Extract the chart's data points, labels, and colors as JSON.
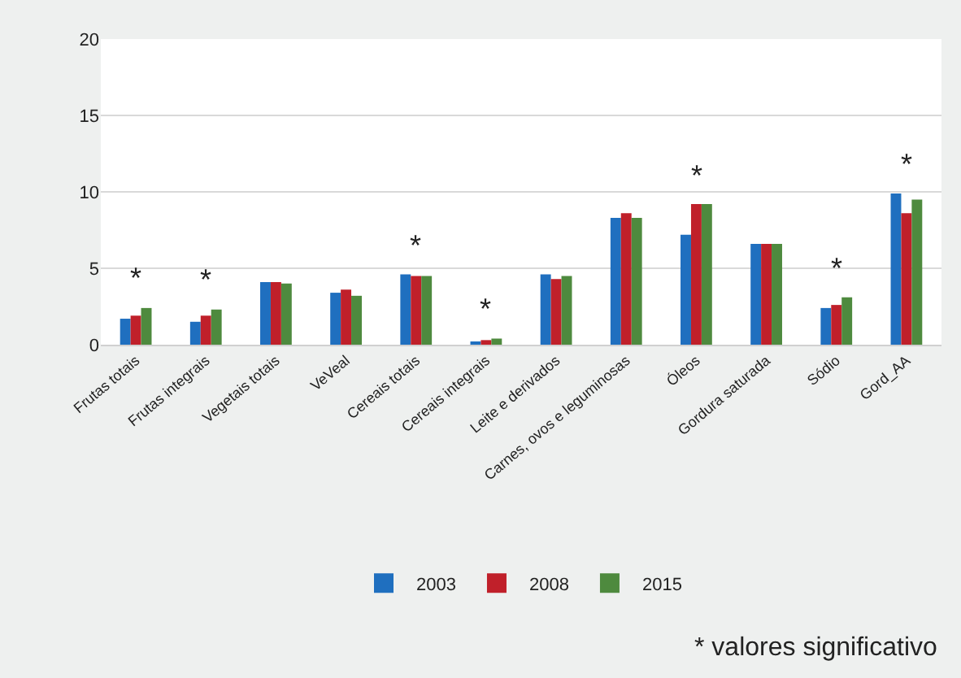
{
  "chart_data": {
    "type": "bar",
    "categories": [
      "Frutas totais",
      "Frutas integrais",
      "Vegetais totais",
      "VeVeal",
      "Cereais totais",
      "Cereais integrais",
      "Leite e derivados",
      "Carnes, ovos e leguminosas",
      "Óleos",
      "Gordura saturada",
      "Sódio",
      "Gord_AA"
    ],
    "series": [
      {
        "name": "2003",
        "color": "#1f6fbf",
        "values": [
          1.7,
          1.5,
          4.1,
          3.4,
          4.6,
          0.2,
          4.6,
          8.3,
          7.2,
          6.6,
          2.4,
          9.9
        ]
      },
      {
        "name": "2008",
        "color": "#c0202a",
        "values": [
          1.9,
          1.9,
          4.1,
          3.6,
          4.5,
          0.3,
          4.3,
          8.6,
          9.2,
          6.6,
          2.6,
          8.6
        ]
      },
      {
        "name": "2015",
        "color": "#4e8a3e",
        "values": [
          2.4,
          2.3,
          4.0,
          3.2,
          4.5,
          0.4,
          4.5,
          8.3,
          9.2,
          6.6,
          3.1,
          9.5
        ]
      }
    ],
    "ylim": [
      0,
      20
    ],
    "yticks": [
      0,
      5,
      10,
      15,
      20
    ],
    "grid": "y",
    "legend": "bottom",
    "annotations": [
      {
        "text": "*",
        "x": "Frutas totais",
        "y": 2.4
      },
      {
        "text": "*",
        "x": "Frutas integrais",
        "y": 2.3
      },
      {
        "text": "*",
        "x": "Cereais totais",
        "y": 4.6
      },
      {
        "text": "*",
        "x": "Cereais integrais",
        "y": 0.4
      },
      {
        "text": "*",
        "x": "Óleos",
        "y": 9.2
      },
      {
        "text": "*",
        "x": "Sódio",
        "y": 3.1
      },
      {
        "text": "*",
        "x": "Gord_AA",
        "y": 9.9
      },
      "* valores significativo"
    ]
  }
}
